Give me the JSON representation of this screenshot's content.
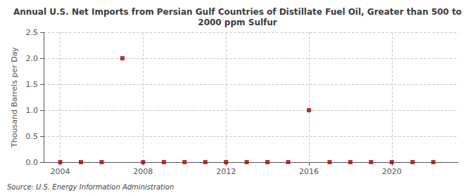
{
  "chart_data": {
    "type": "scatter",
    "title": "Annual U.S. Net Imports from Persian Gulf Countries of Distillate Fuel Oil, Greater than 500 to\n2000 ppm Sulfur",
    "ylabel": "Thousand Barrels per Day",
    "annotations": [
      "Source: U.S. Energy Information Administration"
    ],
    "x": [
      2004,
      2005,
      2006,
      2007,
      2008,
      2009,
      2010,
      2011,
      2012,
      2013,
      2014,
      2015,
      2016,
      2017,
      2018,
      2019,
      2020,
      2021,
      2022
    ],
    "values": [
      0,
      0,
      0,
      2,
      0,
      0,
      0,
      0,
      0,
      0,
      0,
      0,
      1,
      0,
      0,
      0,
      0,
      0,
      0
    ],
    "color": "#aa0000",
    "marker": "square",
    "xlim": [
      2003.2,
      2023.2
    ],
    "xticks": [
      2004,
      2008,
      2012,
      2016,
      2020
    ],
    "ylim": [
      0,
      2.5
    ],
    "yticks": [
      {
        "value": 0,
        "label": "0.0"
      },
      0.5,
      {
        "value": 1,
        "label": "1.0"
      },
      1.5,
      {
        "value": 2,
        "label": "2.0"
      },
      2.5
    ],
    "grid": true
  }
}
